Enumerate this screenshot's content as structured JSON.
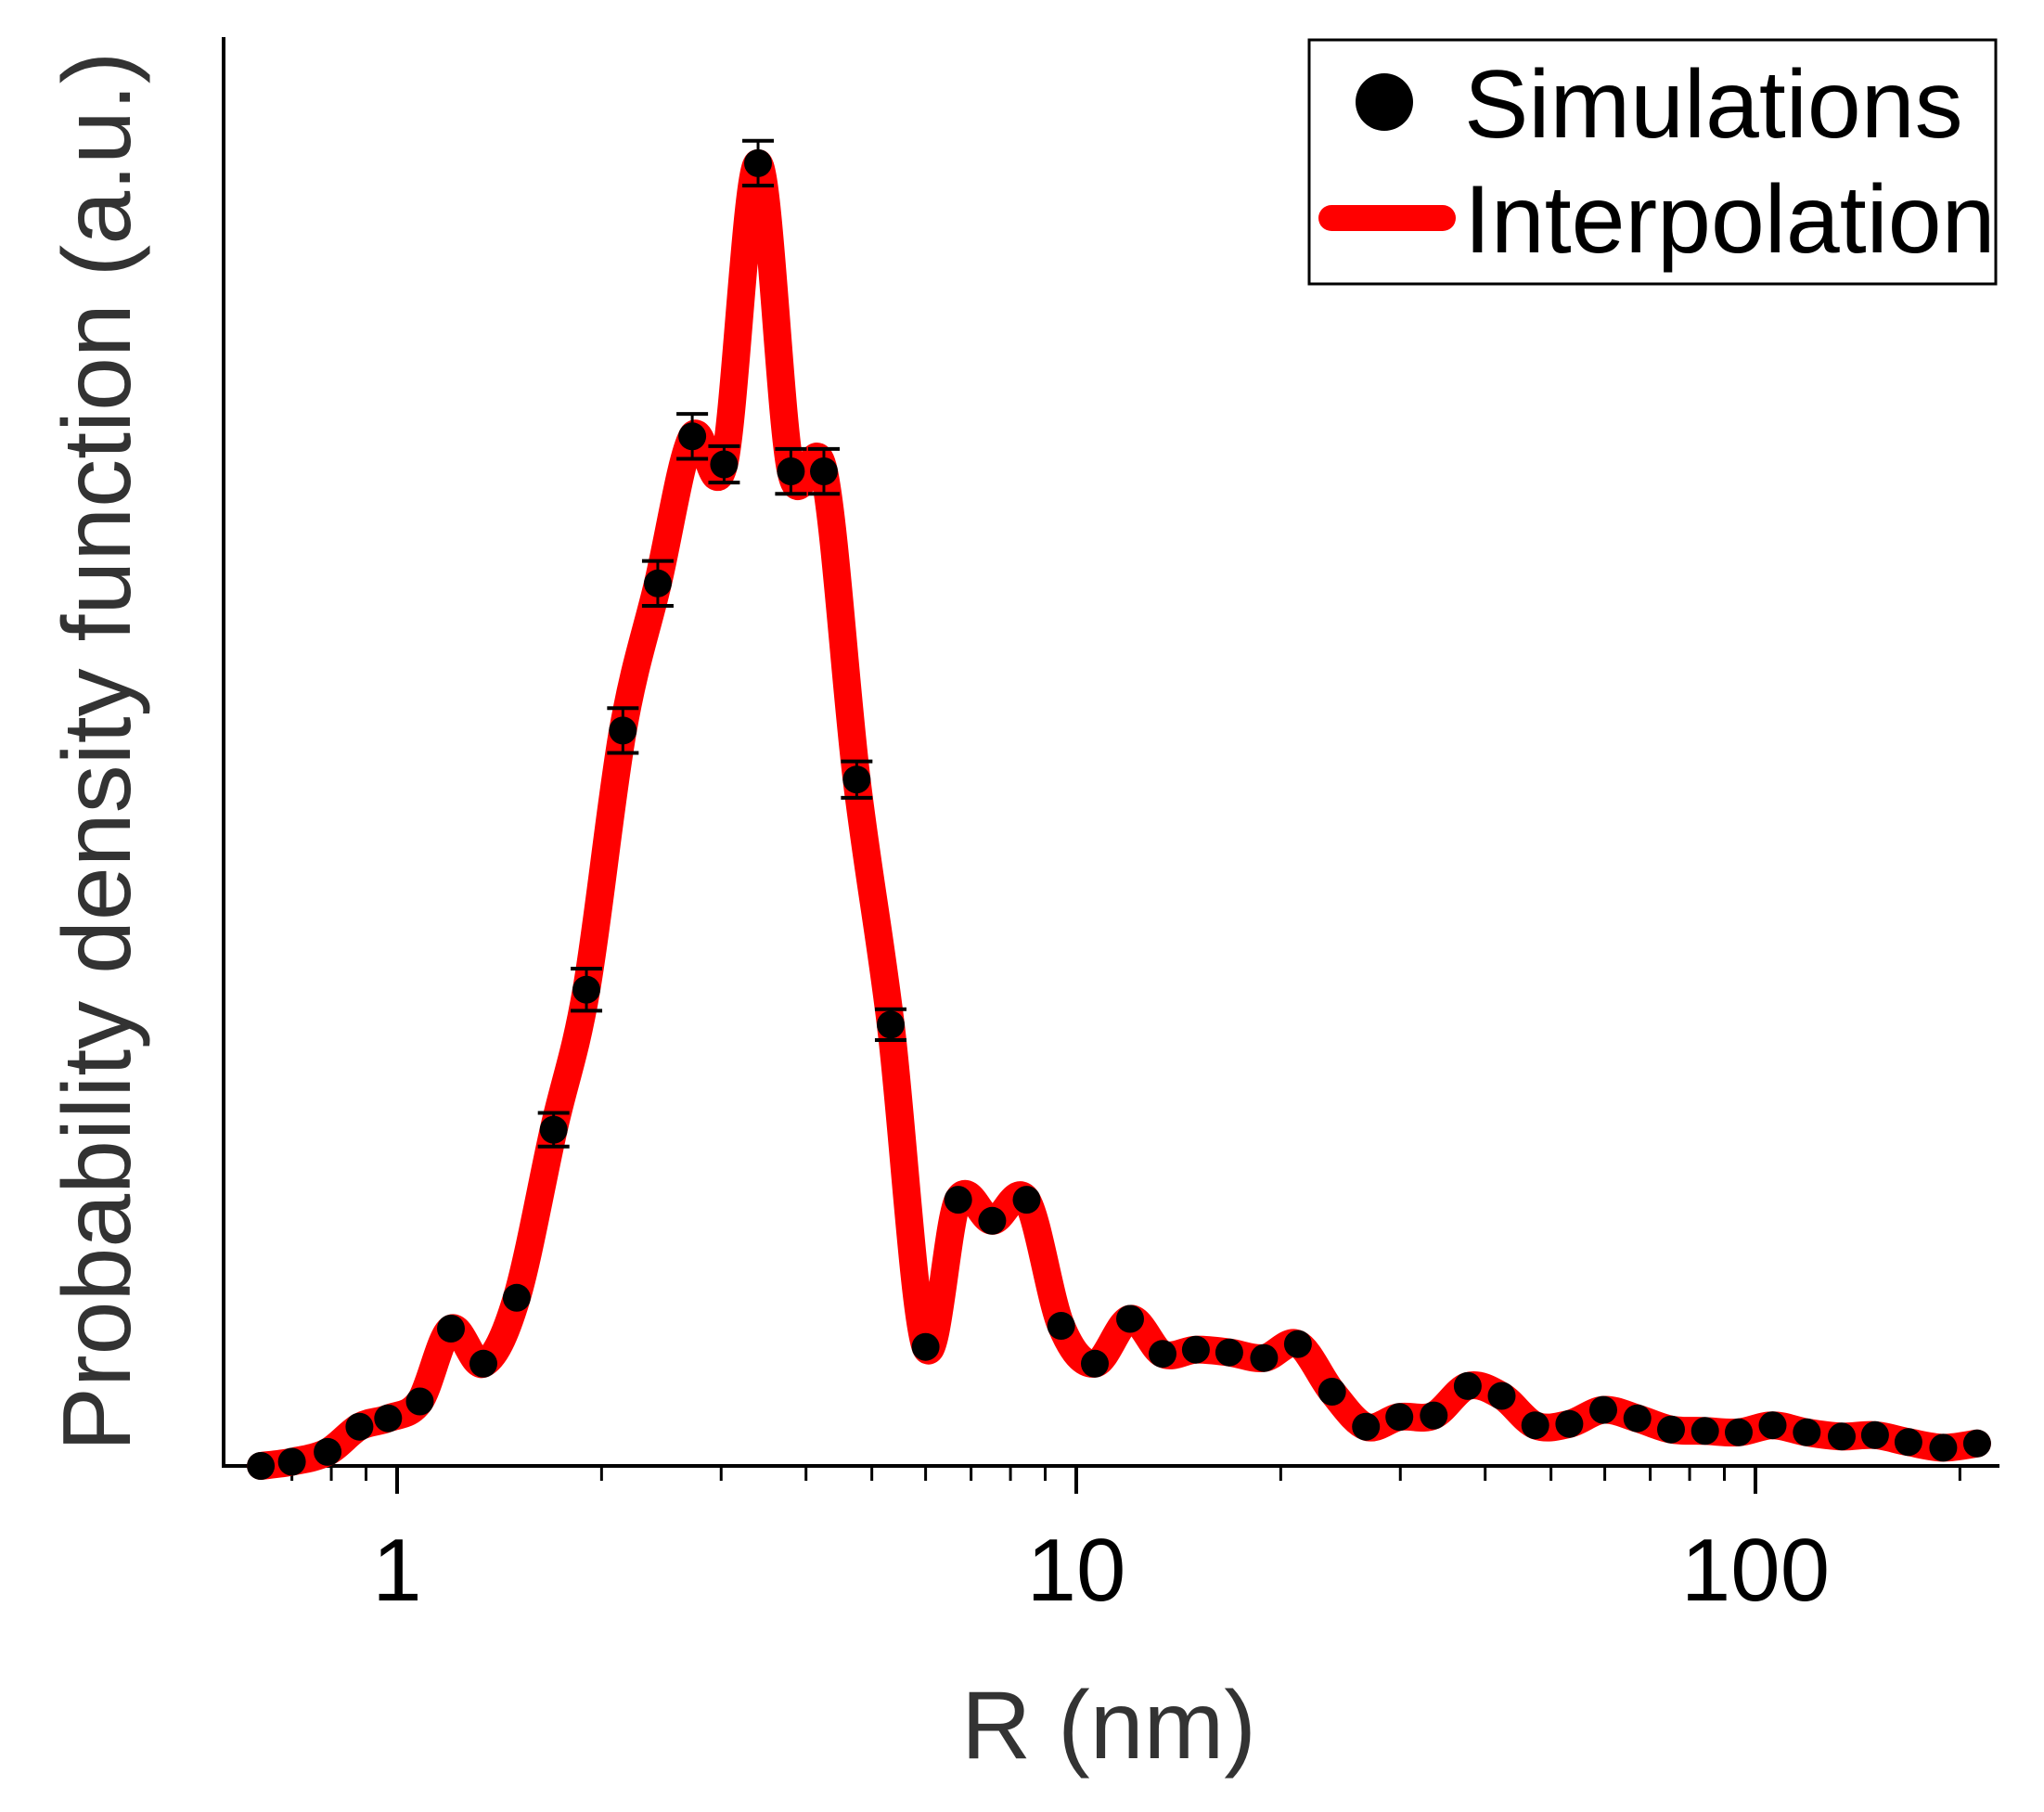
{
  "chart_data": {
    "type": "scatter",
    "title": "",
    "xlabel": "R (nm)",
    "ylabel": "Probability density function (a.u.)",
    "x_scale": "log",
    "xlim": [
      0.62,
      230
    ],
    "ylim": [
      0,
      1.02
    ],
    "x_ticks_major": [
      1,
      10,
      100
    ],
    "x_tick_labels": [
      "1",
      "10",
      "100"
    ],
    "x_ticks_minor": [
      0.7,
      0.8,
      0.9,
      2,
      3,
      4,
      5,
      6,
      7,
      8,
      9,
      20,
      30,
      40,
      50,
      60,
      70,
      80,
      90,
      200
    ],
    "legend_position": "top-right",
    "colors": {
      "points": "#000000",
      "line": "#ff0000"
    },
    "series": [
      {
        "name": "Simulations",
        "kind": "points-with-error-bars",
        "x": [
          0.63,
          0.7,
          0.79,
          0.88,
          0.97,
          1.08,
          1.2,
          1.34,
          1.5,
          1.7,
          1.9,
          2.15,
          2.42,
          2.72,
          3.03,
          3.4,
          3.8,
          4.25,
          4.75,
          5.33,
          6.0,
          6.7,
          7.52,
          8.45,
          9.5,
          10.65,
          12.0,
          13.4,
          15.0,
          16.8,
          18.9,
          21.2,
          23.8,
          26.7,
          29.9,
          33.6,
          37.7,
          42.3,
          47.4,
          53.2,
          59.7,
          67.0,
          75.1,
          84.3,
          94.5,
          106,
          119,
          134,
          150,
          168,
          189,
          212
        ],
        "y": [
          0.0,
          0.003,
          0.01,
          0.028,
          0.034,
          0.046,
          0.098,
          0.073,
          0.12,
          0.24,
          0.34,
          0.525,
          0.63,
          0.735,
          0.715,
          0.93,
          0.71,
          0.71,
          0.49,
          0.315,
          0.085,
          0.19,
          0.175,
          0.19,
          0.1,
          0.073,
          0.105,
          0.08,
          0.083,
          0.081,
          0.077,
          0.087,
          0.053,
          0.028,
          0.035,
          0.036,
          0.057,
          0.05,
          0.029,
          0.03,
          0.04,
          0.034,
          0.026,
          0.025,
          0.024,
          0.029,
          0.024,
          0.021,
          0.022,
          0.017,
          0.013,
          0.016
        ],
        "err": [
          0,
          0,
          0,
          0,
          0,
          0,
          0,
          0,
          0,
          0.012,
          0.015,
          0.016,
          0.016,
          0.016,
          0.013,
          0.016,
          0.016,
          0.016,
          0.013,
          0.011,
          0,
          0,
          0,
          0,
          0,
          0,
          0,
          0,
          0,
          0,
          0,
          0,
          0,
          0,
          0,
          0,
          0,
          0,
          0,
          0,
          0,
          0,
          0,
          0,
          0,
          0,
          0,
          0,
          0,
          0,
          0,
          0
        ]
      },
      {
        "name": "Interpolation",
        "kind": "smooth-line",
        "x_ref": "Simulations"
      }
    ]
  }
}
